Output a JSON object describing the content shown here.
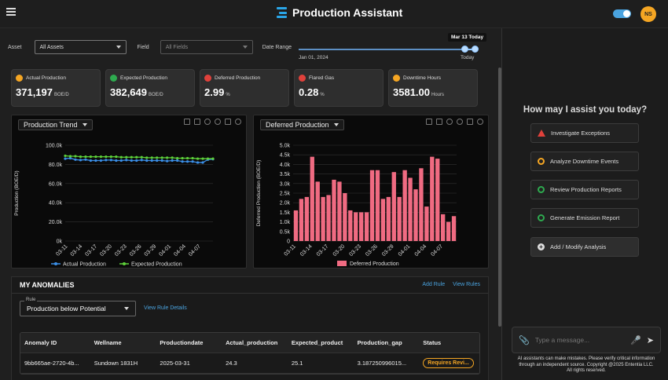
{
  "app": {
    "title": "Production Assistant",
    "user_initials": "NS"
  },
  "filters": {
    "asset_label": "Asset",
    "asset_value": "All Assets",
    "field_label": "Field",
    "field_value": "All Fields",
    "date_label": "Date Range",
    "date_min": "Jan 01, 2024",
    "date_max": "Today",
    "date_bubble": "Mar 13  Today"
  },
  "kpis": [
    {
      "label": "Actual Production",
      "value": "371,197",
      "unit": "BOE/D",
      "icon": "gauge-icon",
      "color": "#f5a623"
    },
    {
      "label": "Expected Production",
      "value": "382,649",
      "unit": "BOE/D",
      "icon": "target-icon",
      "color": "#2eaa4f"
    },
    {
      "label": "Deferred Production",
      "value": "2.99",
      "unit": "%",
      "icon": "deferred-icon",
      "color": "#e0413b"
    },
    {
      "label": "Flared Gas",
      "value": "0.28",
      "unit": "%",
      "icon": "flame-icon",
      "color": "#e0413b"
    },
    {
      "label": "Downtime Hours",
      "value": "3581.00",
      "unit": "Hours",
      "icon": "clock-icon",
      "color": "#f5a623"
    }
  ],
  "chart_data": [
    {
      "type": "line",
      "title": "Production Trend",
      "ylabel": "Production (BOE/D)",
      "ylim": [
        0,
        100000
      ],
      "yticks": [
        "0k",
        "20.0k",
        "40.0k",
        "60.0k",
        "80.0k",
        "100.0k"
      ],
      "xticks": [
        "03-11",
        "03-14",
        "03-17",
        "03-20",
        "03-23",
        "03-26",
        "03-29",
        "04-01",
        "04-04",
        "04-07"
      ],
      "x_first": "2025-03-11",
      "x_last": "2025-04-09",
      "series": [
        {
          "name": "Actual Production",
          "color": "#3b8fe8",
          "values": [
            86000,
            86500,
            85000,
            84500,
            85000,
            84000,
            84000,
            84000,
            84500,
            84500,
            84000,
            84000,
            84500,
            84000,
            84000,
            84500,
            84000,
            84000,
            84000,
            84000,
            83500,
            84000,
            84000,
            83000,
            83000,
            83000,
            82000,
            82000,
            85000,
            85500
          ]
        },
        {
          "name": "Expected Production",
          "color": "#5ed13a",
          "values": [
            89000,
            88500,
            88500,
            88000,
            88000,
            88000,
            88000,
            88000,
            88000,
            88000,
            88000,
            87500,
            87500,
            87500,
            87500,
            87500,
            87000,
            87000,
            87000,
            87000,
            87000,
            87000,
            86500,
            86500,
            86500,
            86500,
            86000,
            86000,
            86000,
            86000
          ]
        }
      ]
    },
    {
      "type": "bar",
      "title": "Deferred Production",
      "ylabel": "Deferred Production (BOE/D)",
      "ylim": [
        0,
        5000
      ],
      "yticks": [
        "0",
        "0.5k",
        "1.0k",
        "1.5k",
        "2.0k",
        "2.5k",
        "3.0k",
        "3.5k",
        "4.0k",
        "4.5k",
        "5.0k"
      ],
      "xticks": [
        "03-11",
        "03-14",
        "03-17",
        "03-20",
        "03-23",
        "03-26",
        "03-29",
        "04-01",
        "04-04",
        "04-07"
      ],
      "x_first": "2025-03-11",
      "x_last": "2025-04-09",
      "series": [
        {
          "name": "Deferred Production",
          "color": "#f06b82",
          "values": [
            1600,
            2200,
            2300,
            4400,
            3100,
            2300,
            2400,
            3200,
            3100,
            2500,
            1600,
            1500,
            1500,
            1500,
            3700,
            3700,
            2200,
            2300,
            3600,
            2300,
            3700,
            3300,
            2700,
            3800,
            1800,
            4400,
            4300,
            1400,
            1000,
            1300
          ]
        }
      ]
    }
  ],
  "chart_toolbar": [
    "zoom-icon",
    "zoom-in-icon",
    "pan-icon",
    "lasso-icon",
    "download-icon",
    "camera-icon"
  ],
  "anomalies": {
    "title": "MY ANOMALIES",
    "add_rule": "Add Rule",
    "view_rules": "View Rules",
    "rule_label": "Rule",
    "rule_value": "Production below Potential",
    "view_rule_details": "View Rule Details",
    "columns": [
      "Anomaly ID",
      "Wellname",
      "Productiondate",
      "Actual_production",
      "Expected_product",
      "Production_gap",
      "Status"
    ],
    "rows": [
      {
        "id": "9bb665ae-2720-4b...",
        "well": "Sundown 1831H",
        "date": "2025-03-31",
        "actual": "24.3",
        "expected": "25.1",
        "gap": "3.187250996015...",
        "status": "Requires Revi..."
      }
    ]
  },
  "assistant": {
    "heading": "How may I assist you today?",
    "suggestions": [
      {
        "label": "Investigate Exceptions",
        "icon": "warning-icon",
        "color": "#e0413b"
      },
      {
        "label": "Analyze Downtime Events",
        "icon": "search-analysis-icon",
        "color": "#f5a623"
      },
      {
        "label": "Review Production Reports",
        "icon": "pie-chart-icon",
        "color": "#2eaa4f"
      },
      {
        "label": "Generate Emission Report",
        "icon": "emission-icon",
        "color": "#2eaa4f"
      },
      {
        "label": "Add / Modify Analysis",
        "icon": "plus-circle-icon",
        "color": "#dddddd"
      }
    ],
    "input_placeholder": "Type a message...",
    "disclaimer": "AI assistants can make mistakes. Please verify critical information through an independent source. Copyright @2025 Ententia LLC. All rights reserved."
  }
}
